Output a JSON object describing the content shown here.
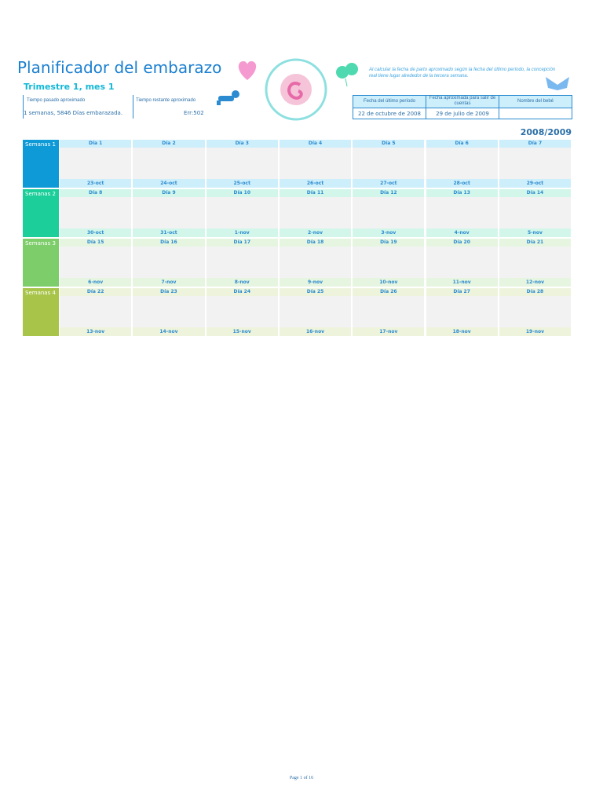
{
  "header": {
    "title": "Planificador del embarazo",
    "subtitle": "Trimestre 1, mes 1"
  },
  "summary": {
    "labels": [
      "Tiempo pasado aproximado",
      "Tiempo restante aproximado"
    ],
    "values": [
      "1 semanas, 5846 Días embarazada.",
      "Err:502"
    ]
  },
  "note": "Al calcular la fecha de parto aproximado según la fecha del último período, la concepción real tiene lugar alrededor de la tercera semana.",
  "info": {
    "headers": [
      "Fecha del último período",
      "Fecha aproximada para salir de cuentas",
      "Nombre del bebé"
    ],
    "values": [
      "22 de octubre de 2008",
      "29 de julio de 2009"
    ]
  },
  "year": "2008/2009",
  "weeks": [
    {
      "label": "Semanas 1",
      "color": "#0e9ad7",
      "light": "#cdeefb",
      "days": [
        {
          "label": "Día 1",
          "date": "23-oct"
        },
        {
          "label": "Día 2",
          "date": "24-oct"
        },
        {
          "label": "Día 3",
          "date": "25-oct"
        },
        {
          "label": "Día 4",
          "date": "26-oct"
        },
        {
          "label": "Día 5",
          "date": "27-oct"
        },
        {
          "label": "Día 6",
          "date": "28-oct"
        },
        {
          "label": "Día 7",
          "date": "29-oct"
        }
      ]
    },
    {
      "label": "Semanas 2",
      "color": "#1ccf9a",
      "light": "#d2f7ea",
      "days": [
        {
          "label": "Día 8",
          "date": "30-oct"
        },
        {
          "label": "Día 9",
          "date": "31-oct"
        },
        {
          "label": "Día 10",
          "date": "1-nov"
        },
        {
          "label": "Día 11",
          "date": "2-nov"
        },
        {
          "label": "Día 12",
          "date": "3-nov"
        },
        {
          "label": "Día 13",
          "date": "4-nov"
        },
        {
          "label": "Día 14",
          "date": "5-nov"
        }
      ]
    },
    {
      "label": "Semanas 3",
      "color": "#7dcd6a",
      "light": "#e6f5df",
      "days": [
        {
          "label": "Día 15",
          "date": "6-nov"
        },
        {
          "label": "Día 16",
          "date": "7-nov"
        },
        {
          "label": "Día 17",
          "date": "8-nov"
        },
        {
          "label": "Día 18",
          "date": "9-nov"
        },
        {
          "label": "Día 19",
          "date": "10-nov"
        },
        {
          "label": "Día 20",
          "date": "11-nov"
        },
        {
          "label": "Día 21",
          "date": "12-nov"
        }
      ]
    },
    {
      "label": "Semanas 4",
      "color": "#a8c54a",
      "light": "#eef4dc",
      "days": [
        {
          "label": "Día 22",
          "date": "13-nov"
        },
        {
          "label": "Día 23",
          "date": "14-nov"
        },
        {
          "label": "Día 24",
          "date": "15-nov"
        },
        {
          "label": "Día 25",
          "date": "16-nov"
        },
        {
          "label": "Día 26",
          "date": "17-nov"
        },
        {
          "label": "Día 27",
          "date": "18-nov"
        },
        {
          "label": "Día 28",
          "date": "19-nov"
        }
      ]
    }
  ],
  "footer": "Page 1 of 16"
}
